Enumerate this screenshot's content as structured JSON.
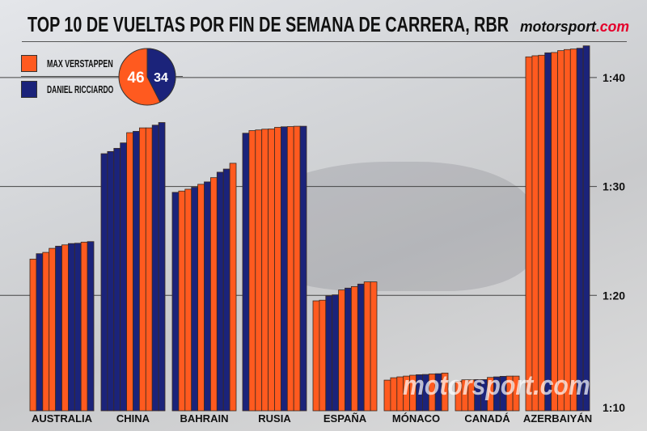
{
  "title": "TOP 10 DE VUELTAS POR FIN DE SEMANA DE CARRERA, RBR",
  "logo": {
    "text_main": "motorsport",
    "text_suffix": ".com"
  },
  "watermark": "motorsport.com",
  "legend": [
    {
      "name": "MAX VERSTAPPEN",
      "color": "#ff5a1f"
    },
    {
      "name": "DANIEL RICCIARDO",
      "color": "#1b237a"
    }
  ],
  "pie": {
    "verstappen": 46,
    "ricciardo": 34
  },
  "chart_data": {
    "type": "bar",
    "title": "TOP 10 DE VUELTAS POR FIN DE SEMANA DE CARRERA, RBR",
    "xlabel": "",
    "ylabel": "",
    "ylim": [
      "1:10",
      "1:43"
    ],
    "yticks": [
      "1:10",
      "1:20",
      "1:30",
      "1:40"
    ],
    "grid": true,
    "legend_position": "top-left",
    "driver_colors": {
      "V": "#ff5a1f",
      "R": "#1b237a"
    },
    "categories": [
      "AUSTRALIA",
      "CHINA",
      "BAHRAIN",
      "RUSIA",
      "ESPAÑA",
      "MÓNACO",
      "CANADÁ",
      "AZERBAIYÁN"
    ],
    "groups": [
      {
        "drivers": [
          "V",
          "R",
          "V",
          "V",
          "R",
          "V",
          "R",
          "R",
          "V",
          "R"
        ],
        "laps": [
          "1:23.33",
          "1:23.83",
          "1:23.95",
          "1:24.32",
          "1:24.52",
          "1:24.64",
          "1:24.76",
          "1:24.79",
          "1:24.89",
          "1:24.94"
        ]
      },
      {
        "drivers": [
          "R",
          "R",
          "R",
          "R",
          "V",
          "R",
          "V",
          "V",
          "R",
          "R"
        ],
        "laps": [
          "1:33.01",
          "1:33.21",
          "1:33.50",
          "1:34.00",
          "1:34.94",
          "1:35.06",
          "1:35.38",
          "1:35.38",
          "1:35.63",
          "1:35.87"
        ]
      },
      {
        "drivers": [
          "R",
          "V",
          "V",
          "R",
          "V",
          "R",
          "V",
          "R",
          "R",
          "V"
        ],
        "laps": [
          "1:29.46",
          "1:29.58",
          "1:29.75",
          "1:29.93",
          "1:30.20",
          "1:30.42",
          "1:30.81",
          "1:31.31",
          "1:31.60",
          "1:32.13"
        ]
      },
      {
        "drivers": [
          "R",
          "V",
          "V",
          "V",
          "V",
          "V",
          "R",
          "V",
          "V",
          "R"
        ],
        "laps": [
          "1:34.89",
          "1:35.13",
          "1:35.19",
          "1:35.26",
          "1:35.28",
          "1:35.43",
          "1:35.48",
          "1:35.50",
          "1:35.53",
          "1:35.53"
        ]
      },
      {
        "drivers": [
          "V",
          "V",
          "R",
          "R",
          "V",
          "R",
          "V",
          "R",
          "V",
          "V"
        ],
        "laps": [
          "1:19.50",
          "1:19.56",
          "1:19.95",
          "1:20.05",
          "1:20.50",
          "1:20.67",
          "1:20.81",
          "1:21.04",
          "1:21.24",
          "1:21.24"
        ]
      },
      {
        "drivers": [
          "V",
          "V",
          "V",
          "V",
          "V",
          "R",
          "R",
          "V",
          "R",
          "V"
        ],
        "laps": [
          "1:12.22",
          "1:12.44",
          "1:12.52",
          "1:12.59",
          "1:12.67",
          "1:12.72",
          "1:12.74",
          "1:12.79",
          "1:12.81",
          "1:12.87"
        ]
      },
      {
        "drivers": [
          "V",
          "V",
          "V",
          "R",
          "R",
          "V",
          "R",
          "R",
          "V",
          "V"
        ],
        "laps": [
          "1:12.12",
          "1:12.25",
          "1:12.25",
          "1:12.27",
          "1:12.27",
          "1:12.47",
          "1:12.52",
          "1:12.57",
          "1:12.59",
          "1:12.59"
        ]
      },
      {
        "drivers": [
          "V",
          "V",
          "V",
          "R",
          "V",
          "V",
          "V",
          "V",
          "R",
          "R"
        ],
        "laps": [
          "1:41.90",
          "1:42.00",
          "1:42.05",
          "1:42.27",
          "1:42.30",
          "1:42.47",
          "1:42.57",
          "1:42.62",
          "1:42.69",
          "1:42.91"
        ]
      }
    ]
  }
}
